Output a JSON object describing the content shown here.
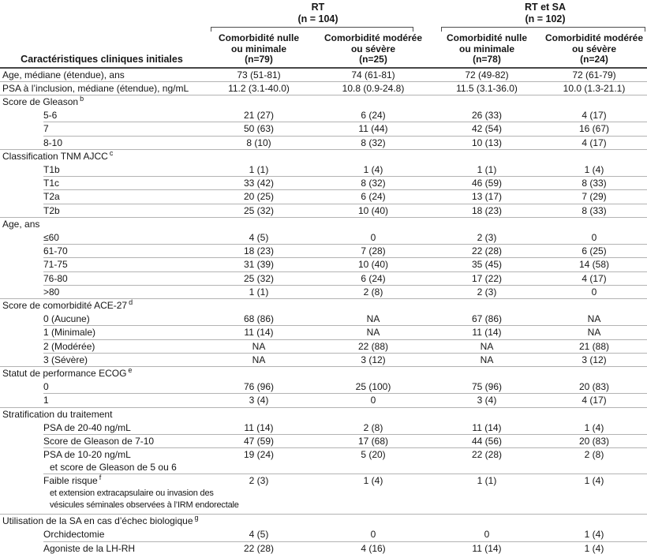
{
  "header": {
    "characteristics_label": "Caractéristiques cliniques initiales",
    "groups": [
      {
        "title": "RT\n(n = 104)"
      },
      {
        "title": "RT et SA\n(n = 102)"
      }
    ],
    "columns": [
      "Comorbidité nulle\nou minimale\n(n=79)",
      "Comorbidité modérée\nou sévère\n(n=25)",
      "Comorbidité nulle\nou minimale\n(n=78)",
      "Comorbidité modérée\nou sévère\n(n=24)"
    ]
  },
  "colors": {
    "header_rule": "#474747",
    "row_separator": "#b3b3b3",
    "bottom_rule": "#336666",
    "text": "#161616"
  },
  "rows": [
    {
      "type": "data",
      "indent": false,
      "label": "Age, médiane (étendue), ans",
      "values": [
        "73 (51-81)",
        "74 (61-81)",
        "72 (49-82)",
        "72 (61-79)"
      ],
      "sep": "full"
    },
    {
      "type": "data",
      "indent": false,
      "label": "PSA à l’inclusion, médiane (étendue), ng/mL",
      "values": [
        "11.2 (3.1-40.0)",
        "10.8 (0.9-24.8)",
        "11.5 (3.1-36.0)",
        "10.0 (1.3-21.1)"
      ],
      "sep": "full"
    },
    {
      "type": "section",
      "label": "Score de Gleason",
      "sup": "b",
      "sep": "none"
    },
    {
      "type": "data",
      "indent": true,
      "label": "5-6",
      "values": [
        "21 (27)",
        "6 (24)",
        "26 (33)",
        "4 (17)"
      ],
      "sep": "indent"
    },
    {
      "type": "data",
      "indent": true,
      "label": "7",
      "values": [
        "50 (63)",
        "11 (44)",
        "42 (54)",
        "16 (67)"
      ],
      "sep": "indent"
    },
    {
      "type": "data",
      "indent": true,
      "label": "8-10",
      "values": [
        "8 (10)",
        "8 (32)",
        "10 (13)",
        "4 (17)"
      ],
      "sep": "full"
    },
    {
      "type": "section",
      "label": "Classification TNM AJCC",
      "sup": "c",
      "sep": "none"
    },
    {
      "type": "data",
      "indent": true,
      "label": "T1b",
      "values": [
        "1 (1)",
        "1 (4)",
        "1 (1)",
        "1 (4)"
      ],
      "sep": "indent"
    },
    {
      "type": "data",
      "indent": true,
      "label": "T1c",
      "values": [
        "33 (42)",
        "8 (32)",
        "46 (59)",
        "8 (33)"
      ],
      "sep": "indent"
    },
    {
      "type": "data",
      "indent": true,
      "label": "T2a",
      "values": [
        "20 (25)",
        "6 (24)",
        "13 (17)",
        "7 (29)"
      ],
      "sep": "indent"
    },
    {
      "type": "data",
      "indent": true,
      "label": "T2b",
      "values": [
        "25 (32)",
        "10 (40)",
        "18 (23)",
        "8 (33)"
      ],
      "sep": "full"
    },
    {
      "type": "section",
      "label": "Age, ans",
      "sup": "",
      "sep": "none"
    },
    {
      "type": "data",
      "indent": true,
      "label": "≤60",
      "values": [
        "4 (5)",
        "0",
        "2 (3)",
        "0"
      ],
      "sep": "indent"
    },
    {
      "type": "data",
      "indent": true,
      "label": "61-70",
      "values": [
        "18 (23)",
        "7 (28)",
        "22 (28)",
        "6 (25)"
      ],
      "sep": "indent"
    },
    {
      "type": "data",
      "indent": true,
      "label": "71-75",
      "values": [
        "31 (39)",
        "10 (40)",
        "35 (45)",
        "14 (58)"
      ],
      "sep": "indent"
    },
    {
      "type": "data",
      "indent": true,
      "label": "76-80",
      "values": [
        "25 (32)",
        "6 (24)",
        "17 (22)",
        "4 (17)"
      ],
      "sep": "indent"
    },
    {
      "type": "data",
      "indent": true,
      "label": ">80",
      "values": [
        "1 (1)",
        "2 (8)",
        "2 (3)",
        "0"
      ],
      "sep": "full"
    },
    {
      "type": "section",
      "label": "Score de comorbidité ACE-27",
      "sup": "d",
      "sep": "none"
    },
    {
      "type": "data",
      "indent": true,
      "label": "0 (Aucune)",
      "values": [
        "68 (86)",
        "NA",
        "67 (86)",
        "NA"
      ],
      "sep": "indent"
    },
    {
      "type": "data",
      "indent": true,
      "label": "1 (Minimale)",
      "values": [
        "11 (14)",
        "NA",
        "11 (14)",
        "NA"
      ],
      "sep": "indent"
    },
    {
      "type": "data",
      "indent": true,
      "label": "2 (Modérée)",
      "values": [
        "NA",
        "22 (88)",
        "NA",
        "21 (88)"
      ],
      "sep": "indent"
    },
    {
      "type": "data",
      "indent": true,
      "label": "3 (Sévère)",
      "values": [
        "NA",
        "3 (12)",
        "NA",
        "3 (12)"
      ],
      "sep": "full"
    },
    {
      "type": "section",
      "label": "Statut de performance ECOG",
      "sup": "e",
      "sep": "none"
    },
    {
      "type": "data",
      "indent": true,
      "label": "0",
      "values": [
        "76 (96)",
        "25 (100)",
        "75 (96)",
        "20 (83)"
      ],
      "sep": "indent"
    },
    {
      "type": "data",
      "indent": true,
      "label": "1",
      "values": [
        "3 (4)",
        "0",
        "3 (4)",
        "4 (17)"
      ],
      "sep": "full"
    },
    {
      "type": "section",
      "label": "Stratification du traitement",
      "sup": "",
      "sep": "none"
    },
    {
      "type": "data",
      "indent": true,
      "label": "PSA de 20-40 ng/mL",
      "values": [
        "11 (14)",
        "2 (8)",
        "11 (14)",
        "1 (4)"
      ],
      "sep": "indent"
    },
    {
      "type": "data",
      "indent": true,
      "label": "Score de Gleason de 7-10",
      "values": [
        "47 (59)",
        "17 (68)",
        "44 (56)",
        "20 (83)"
      ],
      "sep": "indent"
    },
    {
      "type": "data",
      "indent": true,
      "label": "PSA de 10-20 ng/mL",
      "extra": [
        "et score de Gleason de 5 ou 6"
      ],
      "extraSmall": false,
      "values": [
        "19 (24)",
        "5 (20)",
        "22 (28)",
        "2 (8)"
      ],
      "sep": "indent"
    },
    {
      "type": "data",
      "indent": true,
      "label": "Faible risque",
      "sup": "f",
      "extra": [
        "et extension extracapsulaire ou invasion des",
        "vésicules séminales observées à l’IRM endorectale"
      ],
      "extraSmall": true,
      "padAfter": true,
      "values": [
        "2 (3)",
        "1 (4)",
        "1 (1)",
        "1 (4)"
      ],
      "sep": "full"
    },
    {
      "type": "section",
      "label": "Utilisation de la SA en cas d’échec biologique",
      "sup": "g",
      "sep": "none"
    },
    {
      "type": "data",
      "indent": true,
      "label": "Orchidectomie",
      "values": [
        "4 (5)",
        "0",
        "0",
        "1 (4)"
      ],
      "sep": "indent"
    },
    {
      "type": "data",
      "indent": true,
      "label": "Agoniste de la LH-RH",
      "values": [
        "22 (28)",
        "4 (16)",
        "11 (14)",
        "1 (4)"
      ],
      "sep": "bottom"
    }
  ]
}
